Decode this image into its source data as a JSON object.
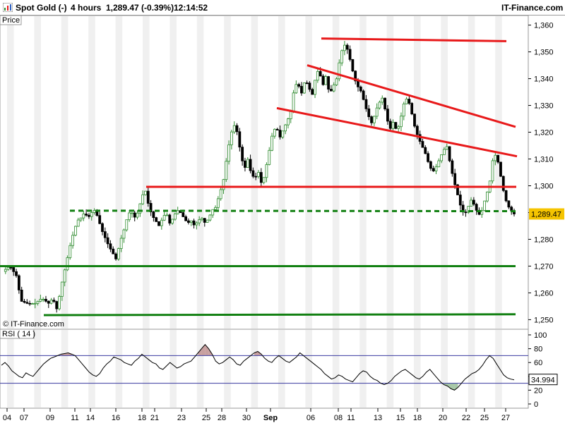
{
  "header": {
    "instrument": "Spot Gold (-)",
    "timeframe": "4 hours",
    "last_quote": "1,289.47 (-0.39%)",
    "time": "12:14:52",
    "site": "IT-Finance.com"
  },
  "panels": {
    "price_label": "Price",
    "watermark": "© IT-Finance.com",
    "rsi_label": "RSI ( 14 )"
  },
  "colors": {
    "up_candle": "#2e8b2e",
    "down_candle": "#000000",
    "resistance": "#e8191a",
    "support": "#128012",
    "price_marker": "#f5c400",
    "rsi_line": "#000000",
    "rsi_band": "#3a3aa0"
  },
  "chart_data": [
    {
      "type": "candlestick",
      "ylim": [
        1248,
        1362
      ],
      "y_ticks": [
        1250,
        1260,
        1270,
        1280,
        1290,
        1300,
        1310,
        1320,
        1330,
        1340,
        1350,
        1360
      ],
      "y_tick_labels": [
        "1,250",
        "1,260",
        "1,270",
        "1,280",
        "1,290",
        "1,300",
        "1,310",
        "1,320",
        "1,330",
        "1,340",
        "1,350",
        "1,360"
      ],
      "x_ticks": [
        "04",
        "07",
        "09",
        "11",
        "14",
        "16",
        "18",
        "21",
        "23",
        "25",
        "28",
        "30",
        "Sep",
        "06",
        "08",
        "11",
        "13",
        "15",
        "18",
        "20",
        "22",
        "25",
        "27"
      ],
      "current_price": 1289.47,
      "current_price_label": "1,289.47",
      "price_path": [
        [
          0,
          1268
        ],
        [
          4,
          1270
        ],
        [
          8,
          1266
        ],
        [
          10,
          1257
        ],
        [
          14,
          1256
        ],
        [
          18,
          1256
        ],
        [
          22,
          1258
        ],
        [
          26,
          1256
        ],
        [
          28,
          1258
        ],
        [
          30,
          1255
        ],
        [
          31,
          1252
        ],
        [
          32,
          1260
        ],
        [
          34,
          1266
        ],
        [
          36,
          1272
        ],
        [
          38,
          1278
        ],
        [
          40,
          1283
        ],
        [
          42,
          1287
        ],
        [
          44,
          1288
        ],
        [
          46,
          1290
        ],
        [
          48,
          1288
        ],
        [
          50,
          1290
        ],
        [
          52,
          1291
        ],
        [
          54,
          1287
        ],
        [
          56,
          1283
        ],
        [
          58,
          1280
        ],
        [
          60,
          1277
        ],
        [
          62,
          1275
        ],
        [
          63,
          1272
        ],
        [
          64,
          1273
        ],
        [
          66,
          1279
        ],
        [
          68,
          1283
        ],
        [
          70,
          1288
        ],
        [
          72,
          1291
        ],
        [
          74,
          1288
        ],
        [
          76,
          1290
        ],
        [
          78,
          1295
        ],
        [
          80,
          1299
        ],
        [
          82,
          1293
        ],
        [
          84,
          1289
        ],
        [
          86,
          1287
        ],
        [
          88,
          1285
        ],
        [
          90,
          1288
        ],
        [
          92,
          1290
        ],
        [
          94,
          1286
        ],
        [
          96,
          1288
        ],
        [
          98,
          1291
        ],
        [
          100,
          1290
        ],
        [
          102,
          1288
        ],
        [
          104,
          1286
        ],
        [
          106,
          1287
        ],
        [
          108,
          1285
        ],
        [
          110,
          1287
        ],
        [
          112,
          1288
        ],
        [
          114,
          1286
        ],
        [
          116,
          1288
        ],
        [
          118,
          1291
        ],
        [
          120,
          1292
        ],
        [
          122,
          1297
        ],
        [
          124,
          1301
        ],
        [
          126,
          1310
        ],
        [
          128,
          1318
        ],
        [
          130,
          1323
        ],
        [
          132,
          1320
        ],
        [
          134,
          1312
        ],
        [
          136,
          1306
        ],
        [
          138,
          1310
        ],
        [
          140,
          1304
        ],
        [
          142,
          1303
        ],
        [
          144,
          1305
        ],
        [
          146,
          1300
        ],
        [
          148,
          1306
        ],
        [
          150,
          1313
        ],
        [
          152,
          1320
        ],
        [
          154,
          1322
        ],
        [
          156,
          1318
        ],
        [
          158,
          1321
        ],
        [
          160,
          1324
        ],
        [
          162,
          1327
        ],
        [
          164,
          1336
        ],
        [
          166,
          1339
        ],
        [
          168,
          1334
        ],
        [
          170,
          1339
        ],
        [
          172,
          1338
        ],
        [
          174,
          1333
        ],
        [
          176,
          1340
        ],
        [
          178,
          1344
        ],
        [
          180,
          1337
        ],
        [
          182,
          1341
        ],
        [
          184,
          1334
        ],
        [
          186,
          1337
        ],
        [
          188,
          1340
        ],
        [
          190,
          1348
        ],
        [
          192,
          1353
        ],
        [
          194,
          1351
        ],
        [
          196,
          1346
        ],
        [
          198,
          1340
        ],
        [
          200,
          1337
        ],
        [
          202,
          1335
        ],
        [
          204,
          1330
        ],
        [
          206,
          1326
        ],
        [
          208,
          1323
        ],
        [
          210,
          1328
        ],
        [
          212,
          1331
        ],
        [
          214,
          1333
        ],
        [
          216,
          1326
        ],
        [
          218,
          1321
        ],
        [
          220,
          1324
        ],
        [
          222,
          1320
        ],
        [
          224,
          1325
        ],
        [
          226,
          1331
        ],
        [
          228,
          1333
        ],
        [
          230,
          1328
        ],
        [
          232,
          1322
        ],
        [
          234,
          1318
        ],
        [
          236,
          1315
        ],
        [
          238,
          1312
        ],
        [
          240,
          1308
        ],
        [
          242,
          1305
        ],
        [
          244,
          1307
        ],
        [
          246,
          1310
        ],
        [
          248,
          1313
        ],
        [
          250,
          1315
        ],
        [
          252,
          1308
        ],
        [
          254,
          1302
        ],
        [
          256,
          1297
        ],
        [
          258,
          1292
        ],
        [
          260,
          1289
        ],
        [
          262,
          1292
        ],
        [
          264,
          1295
        ],
        [
          266,
          1292
        ],
        [
          268,
          1289
        ],
        [
          270,
          1291
        ],
        [
          272,
          1296
        ],
        [
          274,
          1300
        ],
        [
          276,
          1310
        ],
        [
          278,
          1312
        ],
        [
          280,
          1305
        ],
        [
          282,
          1298
        ],
        [
          284,
          1293
        ],
        [
          286,
          1291
        ],
        [
          288,
          1289.47
        ]
      ],
      "resistance_lines": [
        [
          [
            0.0,
            1299.6
          ],
          [
            1.0,
            1299.6
          ]
        ],
        [
          [
            0.0,
            1355.0
          ],
          [
            1.0,
            1354.0
          ]
        ],
        [
          [
            0.0,
            1345.0
          ],
          [
            1.0,
            1322.0
          ]
        ],
        [
          [
            0.0,
            1329.0
          ],
          [
            1.0,
            1311.0
          ]
        ]
      ],
      "support_lines": [
        {
          "points": [
            [
              0.0,
              1290.7
            ],
            [
              1.0,
              1290.5
            ]
          ],
          "style": "dashed"
        },
        {
          "points": [
            [
              0.0,
              1270.0
            ],
            [
              1.0,
              1270.0
            ]
          ],
          "style": "solid"
        },
        {
          "points": [
            [
              0.0,
              1251.7
            ],
            [
              1.0,
              1252.0
            ]
          ],
          "style": "solid"
        }
      ]
    },
    {
      "type": "line",
      "name": "RSI ( 14 )",
      "ylim": [
        0,
        100
      ],
      "y_ticks": [
        0,
        20,
        40,
        60,
        80,
        100
      ],
      "y_tick_labels": [
        "0",
        "20",
        "40",
        "60",
        "80",
        "100"
      ],
      "bands": [
        70,
        30
      ],
      "current_value_label": "34.994",
      "values": [
        56,
        60,
        55,
        48,
        44,
        40,
        38,
        45,
        42,
        40,
        46,
        52,
        58,
        62,
        66,
        68,
        70,
        72,
        73,
        74,
        72,
        70,
        64,
        58,
        52,
        46,
        42,
        40,
        44,
        52,
        58,
        62,
        68,
        66,
        64,
        60,
        58,
        56,
        62,
        66,
        72,
        68,
        64,
        60,
        58,
        52,
        50,
        55,
        60,
        56,
        52,
        54,
        58,
        60,
        62,
        68,
        74,
        80,
        86,
        80,
        72,
        62,
        58,
        60,
        64,
        68,
        64,
        58,
        56,
        62,
        66,
        70,
        74,
        76,
        72,
        66,
        62,
        60,
        66,
        70,
        66,
        62,
        60,
        64,
        68,
        74,
        70,
        66,
        62,
        58,
        54,
        50,
        44,
        40,
        36,
        38,
        42,
        40,
        36,
        34,
        32,
        38,
        44,
        48,
        46,
        40,
        36,
        34,
        30,
        28,
        30,
        34,
        40,
        44,
        48,
        50,
        46,
        42,
        38,
        36,
        40,
        46,
        50,
        44,
        38,
        32,
        28,
        26,
        22,
        20,
        24,
        30,
        36,
        40,
        44,
        46,
        50,
        56,
        64,
        70,
        66,
        58,
        50,
        42,
        38,
        36,
        34.994
      ]
    }
  ]
}
